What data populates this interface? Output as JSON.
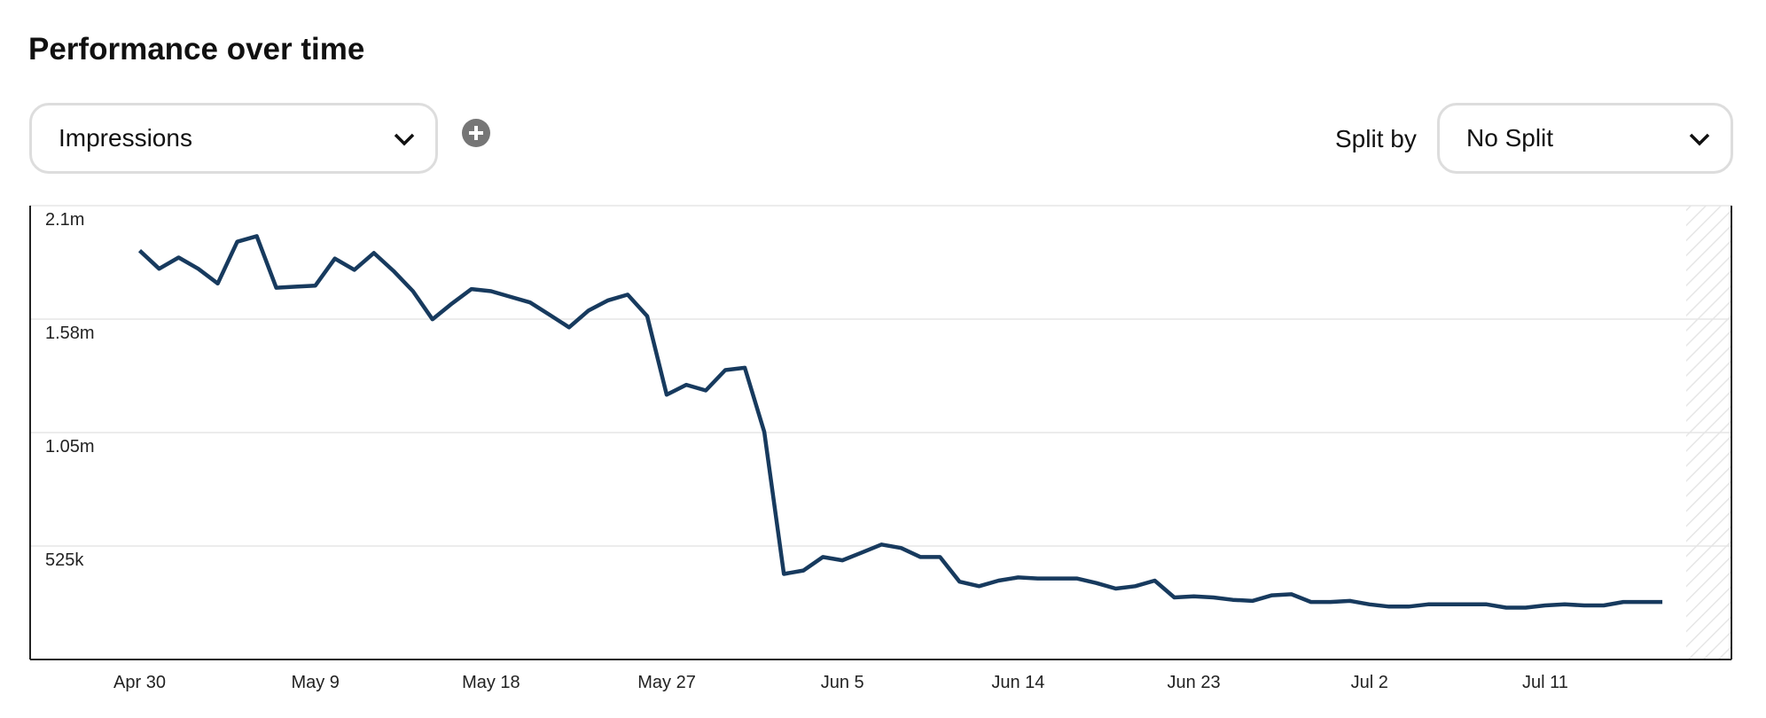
{
  "title": "Performance over time",
  "metric_select": "Impressions",
  "split_label": "Split by",
  "split_select": "No Split",
  "chart_data": {
    "type": "line",
    "color": "#173a5e",
    "grid": true,
    "categories": [
      "Apr 30",
      null,
      null,
      null,
      null,
      null,
      null,
      null,
      null,
      "May 9",
      null,
      null,
      null,
      null,
      null,
      null,
      null,
      null,
      "May 18",
      null,
      null,
      null,
      null,
      null,
      null,
      null,
      null,
      "May 27",
      null,
      null,
      null,
      null,
      null,
      null,
      null,
      null,
      "Jun 5",
      null,
      null,
      null,
      null,
      null,
      null,
      null,
      null,
      "Jun 14",
      null,
      null,
      null,
      null,
      null,
      null,
      null,
      null,
      "Jun 23",
      null,
      null,
      null,
      null,
      null,
      null,
      null,
      null,
      "Jul 2",
      null,
      null,
      null,
      null,
      null,
      null,
      null,
      null,
      "Jul 11",
      null,
      null,
      null,
      null,
      null,
      null
    ],
    "values": [
      1892000,
      1808000,
      1860000,
      1808000,
      1740000,
      1933000,
      1959000,
      1720000,
      1725000,
      1730000,
      1855000,
      1803000,
      1881000,
      1798000,
      1704000,
      1574000,
      1647000,
      1714000,
      1704000,
      1678000,
      1652000,
      1595000,
      1537000,
      1615000,
      1662000,
      1688000,
      1589000,
      1225000,
      1271000,
      1245000,
      1339000,
      1350000,
      1053000,
      396000,
      412000,
      474000,
      459000,
      495000,
      532000,
      516000,
      474000,
      474000,
      360000,
      339000,
      365000,
      380000,
      375000,
      375000,
      375000,
      354000,
      328000,
      339000,
      365000,
      287000,
      292000,
      287000,
      276000,
      271000,
      297000,
      302000,
      266000,
      266000,
      271000,
      255000,
      245000,
      245000,
      255000,
      255000,
      255000,
      255000,
      240000,
      240000,
      250000,
      255000,
      250000,
      250000,
      266000,
      266000,
      266000
    ],
    "ylim": [
      0,
      2100000
    ],
    "yticks": [
      {
        "value": 525000,
        "label": "525k"
      },
      {
        "value": 1050000,
        "label": "1.05m"
      },
      {
        "value": 1575000,
        "label": "1.58m"
      },
      {
        "value": 2100000,
        "label": "2.1m"
      }
    ]
  }
}
